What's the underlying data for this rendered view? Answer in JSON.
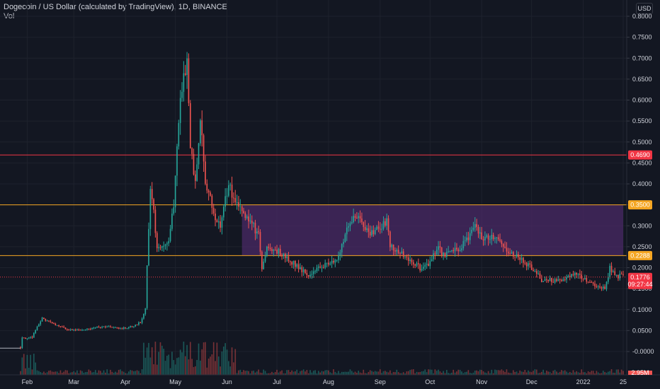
{
  "legend": {
    "title": "Dogecoin / US Dollar (calculated by TradingView), 1D, BINANCE",
    "volume_label": "Vol"
  },
  "currency": "USD",
  "price_axis": {
    "ticks": [
      "0.8000",
      "0.7500",
      "0.7000",
      "0.6500",
      "0.6000",
      "0.5500",
      "0.5000",
      "0.4500",
      "0.4000",
      "0.3500",
      "0.3000",
      "0.2500",
      "0.2000",
      "0.1500",
      "0.1000",
      "0.0500",
      "-0.0000"
    ],
    "values": [
      0.8,
      0.75,
      0.7,
      0.65,
      0.6,
      0.55,
      0.5,
      0.45,
      0.4,
      0.35,
      0.3,
      0.25,
      0.2,
      0.15,
      0.1,
      0.05,
      0.0
    ]
  },
  "time_axis": {
    "labels": [
      "Feb",
      "Mar",
      "Apr",
      "May",
      "Jun",
      "Jul",
      "Aug",
      "Sep",
      "Oct",
      "Nov",
      "Dec",
      "2022",
      "25"
    ]
  },
  "chart_data": {
    "type": "candlestick",
    "x_range": [
      "2021-01-28",
      "2022-01-25"
    ],
    "ylim": [
      0.0,
      0.8
    ],
    "horizontal_lines": [
      {
        "price": 0.469,
        "color": "#f23645",
        "label": "0.4690"
      },
      {
        "price": 0.35,
        "color": "#f5a623",
        "label": "0.3500"
      },
      {
        "price": 0.2288,
        "color": "#f5a623",
        "label": "0.2288"
      }
    ],
    "zone": {
      "from": "2021-06-10",
      "to": "2022-01-25",
      "low": 0.2288,
      "high": 0.35,
      "color": "#4a2a66"
    },
    "last_price": {
      "value": "0.1776",
      "countdown": "09:27:44",
      "color": "#f23645"
    },
    "volume_badge": "2.95M",
    "price_path": [
      [
        "2021-01-28",
        0.01
      ],
      [
        "2021-01-29",
        0.035
      ],
      [
        "2021-02-01",
        0.03
      ],
      [
        "2021-02-04",
        0.035
      ],
      [
        "2021-02-07",
        0.06
      ],
      [
        "2021-02-10",
        0.08
      ],
      [
        "2021-02-14",
        0.07
      ],
      [
        "2021-02-20",
        0.06
      ],
      [
        "2021-02-28",
        0.05
      ],
      [
        "2021-03-10",
        0.055
      ],
      [
        "2021-03-20",
        0.06
      ],
      [
        "2021-03-30",
        0.055
      ],
      [
        "2021-04-05",
        0.06
      ],
      [
        "2021-04-10",
        0.07
      ],
      [
        "2021-04-13",
        0.1
      ],
      [
        "2021-04-15",
        0.3
      ],
      [
        "2021-04-16",
        0.4
      ],
      [
        "2021-04-18",
        0.33
      ],
      [
        "2021-04-20",
        0.25
      ],
      [
        "2021-04-23",
        0.25
      ],
      [
        "2021-04-27",
        0.27
      ],
      [
        "2021-04-30",
        0.35
      ],
      [
        "2021-05-03",
        0.55
      ],
      [
        "2021-05-05",
        0.62
      ],
      [
        "2021-05-08",
        0.69
      ],
      [
        "2021-05-10",
        0.5
      ],
      [
        "2021-05-13",
        0.4
      ],
      [
        "2021-05-16",
        0.55
      ],
      [
        "2021-05-19",
        0.4
      ],
      [
        "2021-05-22",
        0.36
      ],
      [
        "2021-05-25",
        0.32
      ],
      [
        "2021-05-28",
        0.3
      ],
      [
        "2021-06-02",
        0.4
      ],
      [
        "2021-06-05",
        0.36
      ],
      [
        "2021-06-10",
        0.33
      ],
      [
        "2021-06-15",
        0.31
      ],
      [
        "2021-06-20",
        0.28
      ],
      [
        "2021-06-22",
        0.2
      ],
      [
        "2021-06-25",
        0.25
      ],
      [
        "2021-07-01",
        0.24
      ],
      [
        "2021-07-08",
        0.22
      ],
      [
        "2021-07-15",
        0.2
      ],
      [
        "2021-07-20",
        0.18
      ],
      [
        "2021-07-25",
        0.2
      ],
      [
        "2021-08-01",
        0.21
      ],
      [
        "2021-08-06",
        0.22
      ],
      [
        "2021-08-10",
        0.27
      ],
      [
        "2021-08-16",
        0.33
      ],
      [
        "2021-08-20",
        0.31
      ],
      [
        "2021-08-27",
        0.28
      ],
      [
        "2021-09-01",
        0.3
      ],
      [
        "2021-09-05",
        0.31
      ],
      [
        "2021-09-07",
        0.25
      ],
      [
        "2021-09-12",
        0.24
      ],
      [
        "2021-09-20",
        0.21
      ],
      [
        "2021-09-25",
        0.2
      ],
      [
        "2021-10-01",
        0.21
      ],
      [
        "2021-10-05",
        0.25
      ],
      [
        "2021-10-10",
        0.23
      ],
      [
        "2021-10-20",
        0.25
      ],
      [
        "2021-10-28",
        0.3
      ],
      [
        "2021-11-01",
        0.27
      ],
      [
        "2021-11-10",
        0.27
      ],
      [
        "2021-11-15",
        0.25
      ],
      [
        "2021-11-20",
        0.23
      ],
      [
        "2021-11-28",
        0.21
      ],
      [
        "2021-12-04",
        0.19
      ],
      [
        "2021-12-06",
        0.17
      ],
      [
        "2021-12-12",
        0.17
      ],
      [
        "2021-12-20",
        0.17
      ],
      [
        "2021-12-28",
        0.19
      ],
      [
        "2022-01-02",
        0.17
      ],
      [
        "2022-01-10",
        0.15
      ],
      [
        "2022-01-14",
        0.15
      ],
      [
        "2022-01-17",
        0.2
      ],
      [
        "2022-01-20",
        0.18
      ]
    ]
  }
}
